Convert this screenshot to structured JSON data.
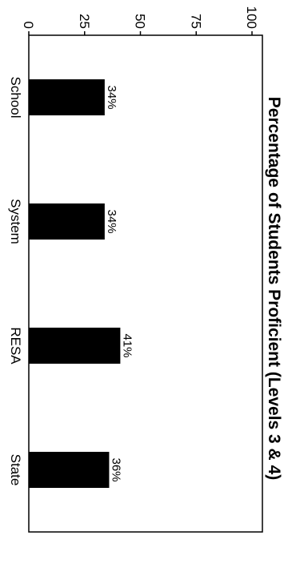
{
  "chart_data": {
    "type": "bar",
    "orientation": "rotated 90° clockwise (vertical bars viewed sideways)",
    "title": "Percentage of Students Proficient (Levels 3 & 4)",
    "categories": [
      "School",
      "System",
      "RESA",
      "State"
    ],
    "values": [
      34,
      34,
      41,
      36
    ],
    "data_labels": [
      "34%",
      "34%",
      "41%",
      "36%"
    ],
    "ylim": [
      0,
      100
    ],
    "yticks": [
      0,
      25,
      50,
      75,
      100
    ],
    "ytick_labels": [
      "0",
      "25",
      "50",
      "75",
      "100"
    ],
    "xlabel": "",
    "ylabel": "",
    "bar_color": "#000000",
    "grid": false,
    "legend": "none"
  }
}
